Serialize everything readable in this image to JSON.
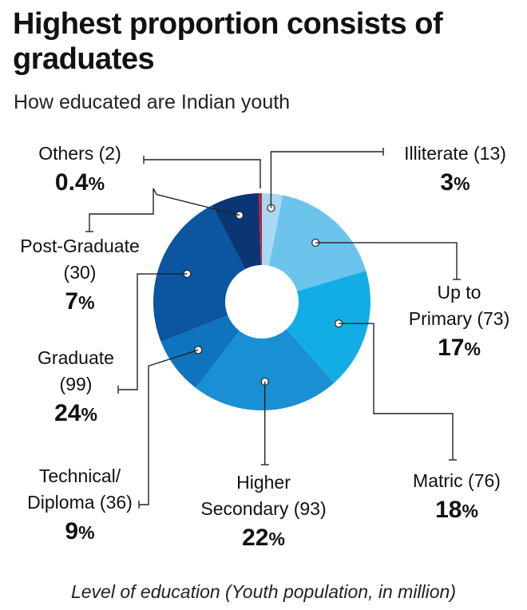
{
  "title": "Highest proportion consists of graduates",
  "subtitle": "How educated are Indian youth",
  "footnote": "Level of education (Youth population, in million)",
  "chart_data": {
    "type": "pie",
    "donut": true,
    "title": "Highest proportion consists of graduates",
    "subtitle": "How educated are Indian youth",
    "caption": "Level of education (Youth population, in million)",
    "unit": "million",
    "slices": [
      {
        "label": "Illiterate",
        "value": 13,
        "percent": "3",
        "color": "#a9d9f2"
      },
      {
        "label": "Up to Primary",
        "value": 73,
        "percent": "17",
        "color": "#6cc4ec"
      },
      {
        "label": "Matric",
        "value": 76,
        "percent": "18",
        "color": "#13ade6"
      },
      {
        "label": "Higher Secondary",
        "value": 93,
        "percent": "22",
        "color": "#1a8fd3"
      },
      {
        "label": "Technical/ Diploma",
        "value": 36,
        "percent": "9",
        "color": "#0f74be"
      },
      {
        "label": "Graduate",
        "value": 99,
        "percent": "24",
        "color": "#0b55a1"
      },
      {
        "label": "Post-Graduate",
        "value": 30,
        "percent": "7",
        "color": "#0a3676"
      },
      {
        "label": "Others",
        "value": 2,
        "percent": "0.4",
        "color": "#c0213a"
      }
    ]
  },
  "labels": [
    {
      "lines": [
        "Others (2)"
      ],
      "percent": "0.4"
    },
    {
      "lines": [
        "Illiterate (13)"
      ],
      "percent": "3"
    },
    {
      "lines": [
        "Post-Graduate",
        "(30)"
      ],
      "percent": "7"
    },
    {
      "lines": [
        "Up to",
        "Primary (73)"
      ],
      "percent": "17"
    },
    {
      "lines": [
        "Graduate",
        "(99)"
      ],
      "percent": "24"
    },
    {
      "lines": [
        "Technical/",
        "Diploma (36)"
      ],
      "percent": "9"
    },
    {
      "lines": [
        "Higher",
        "Secondary (93)"
      ],
      "percent": "22"
    },
    {
      "lines": [
        "Matric (76)"
      ],
      "percent": "18"
    }
  ],
  "percent_sign": "%"
}
